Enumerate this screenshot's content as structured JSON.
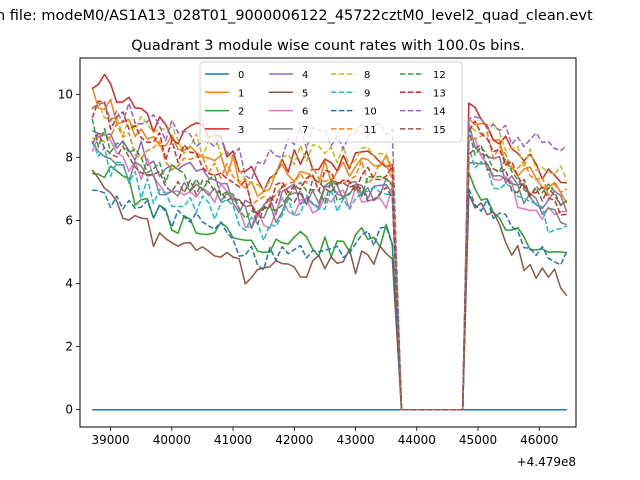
{
  "suptitle": "n file: modeM0/AS1A13_028T01_9000006122_45722cztM0_level2_quad_clean.evt",
  "chart_data": {
    "type": "line",
    "title": "Quadrant 3 module wise count rates with 100.0s bins.",
    "xlabel": "",
    "ylabel": "",
    "x_offset_label": "+4.479e8",
    "xlim": [
      38500,
      46600
    ],
    "ylim": [
      -0.55,
      11.15
    ],
    "xticks": [
      39000,
      40000,
      41000,
      42000,
      43000,
      44000,
      45000,
      46000
    ],
    "xtick_labels": [
      "39000",
      "40000",
      "41000",
      "42000",
      "43000",
      "44000",
      "45000",
      "46000"
    ],
    "yticks": [
      0,
      2,
      4,
      6,
      8,
      10
    ],
    "ytick_labels": [
      "0",
      "2",
      "4",
      "6",
      "8",
      "10"
    ],
    "grid": false,
    "legend_position": "top-center",
    "legend_columns": 4,
    "gap": [
      43750,
      44750
    ],
    "segment1": [
      38700,
      43650
    ],
    "segment2": [
      44850,
      46500
    ],
    "series": [
      {
        "name": "0",
        "color": "#1f77b4",
        "dash": "solid",
        "seg1": [
          0,
          0,
          0,
          0,
          0
        ],
        "seg2": [
          0,
          0,
          0
        ]
      },
      {
        "name": "1",
        "color": "#ff7f0e",
        "dash": "solid",
        "seg1": [
          10.0,
          8.3,
          7.8,
          7.6,
          7.7
        ],
        "seg2": [
          9.5,
          7.6,
          6.8
        ]
      },
      {
        "name": "2",
        "color": "#2ca02c",
        "dash": "solid",
        "seg1": [
          7.8,
          6.0,
          5.6,
          5.2,
          5.5
        ],
        "seg2": [
          7.5,
          5.5,
          4.6
        ]
      },
      {
        "name": "3",
        "color": "#d62728",
        "dash": "solid",
        "seg1": [
          10.6,
          8.9,
          8.3,
          7.8,
          8.0
        ],
        "seg2": [
          9.7,
          8.0,
          7.0
        ]
      },
      {
        "name": "4",
        "color": "#9467bd",
        "dash": "solid",
        "seg1": [
          9.2,
          7.6,
          7.0,
          6.8,
          7.0
        ],
        "seg2": [
          8.8,
          7.0,
          6.4
        ]
      },
      {
        "name": "5",
        "color": "#8c564b",
        "dash": "solid",
        "seg1": [
          7.2,
          5.2,
          4.6,
          4.6,
          4.8
        ],
        "seg2": [
          7.0,
          4.8,
          3.9
        ]
      },
      {
        "name": "6",
        "color": "#e377c2",
        "dash": "solid",
        "seg1": [
          8.6,
          7.2,
          6.7,
          6.6,
          6.8
        ],
        "seg2": [
          8.5,
          6.7,
          6.0
        ]
      },
      {
        "name": "7",
        "color": "#7f7f7f",
        "dash": "solid",
        "seg1": [
          8.3,
          7.0,
          6.6,
          6.8,
          7.0
        ],
        "seg2": [
          8.2,
          6.8,
          6.1
        ]
      },
      {
        "name": "8",
        "color": "#bcbd22",
        "dash": "dashed",
        "seg1": [
          9.5,
          8.6,
          8.2,
          8.0,
          8.1
        ],
        "seg2": [
          9.3,
          8.1,
          7.5
        ]
      },
      {
        "name": "9",
        "color": "#17becf",
        "dash": "dashed",
        "seg1": [
          8.2,
          6.5,
          6.4,
          6.6,
          6.8
        ],
        "seg2": [
          8.0,
          6.6,
          5.5
        ]
      },
      {
        "name": "10",
        "color": "#1f77b4",
        "dash": "dashed",
        "seg1": [
          6.7,
          6.2,
          5.4,
          5.1,
          5.5
        ],
        "seg2": [
          7.0,
          5.4,
          4.7
        ]
      },
      {
        "name": "11",
        "color": "#ff7f0e",
        "dash": "dashed",
        "seg1": [
          9.0,
          8.0,
          7.6,
          7.4,
          7.6
        ],
        "seg2": [
          9.0,
          7.6,
          6.8
        ]
      },
      {
        "name": "12",
        "color": "#2ca02c",
        "dash": "dashed",
        "seg1": [
          8.8,
          7.4,
          6.9,
          6.9,
          7.2
        ],
        "seg2": [
          8.6,
          7.2,
          6.6
        ]
      },
      {
        "name": "13",
        "color": "#d62728",
        "dash": "dashed",
        "seg1": [
          9.6,
          8.2,
          7.5,
          7.2,
          7.4
        ],
        "seg2": [
          9.1,
          7.4,
          6.2
        ]
      },
      {
        "name": "14",
        "color": "#9467bd",
        "dash": "dashed",
        "seg1": [
          9.8,
          8.8,
          8.5,
          8.6,
          8.8
        ],
        "seg2": [
          9.5,
          8.5,
          8.3
        ]
      },
      {
        "name": "15",
        "color": "#8c564b",
        "dash": "dashed",
        "seg1": [
          8.5,
          7.3,
          6.9,
          6.9,
          7.1
        ],
        "seg2": [
          8.4,
          7.1,
          6.4
        ]
      }
    ]
  }
}
